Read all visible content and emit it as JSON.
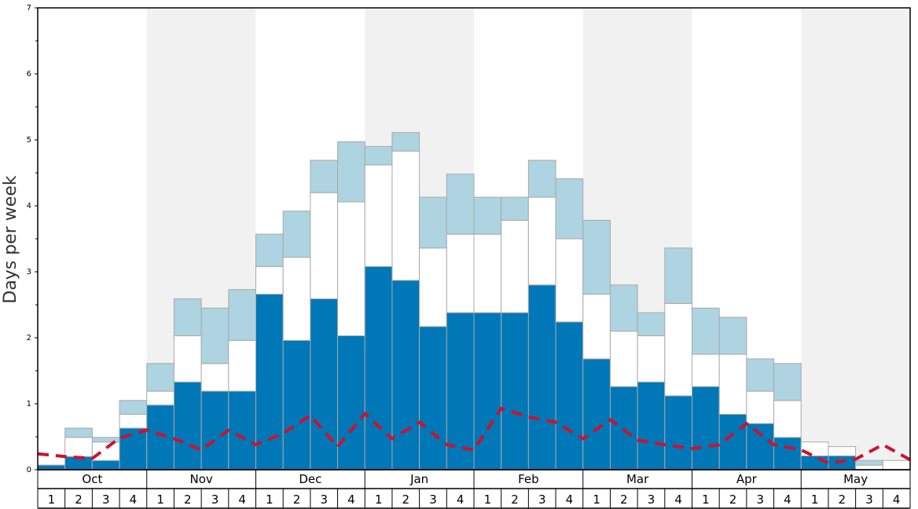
{
  "chart_data": {
    "type": "bar",
    "stacked": true,
    "title": "",
    "xlabel": "",
    "ylabel": "Days per week",
    "ylim": [
      0,
      7
    ],
    "yticks": [
      "0",
      "1",
      "2",
      "3",
      "4",
      "5",
      "6",
      "7"
    ],
    "months": [
      "Oct",
      "Nov",
      "Dec",
      "Jan",
      "Feb",
      "Mar",
      "Apr",
      "May"
    ],
    "week_labels": [
      "1",
      "2",
      "3",
      "4"
    ],
    "colors": {
      "segment1": "#0077b6",
      "segment2": "#ffffff",
      "segment3": "#add4e0",
      "bar_stroke": "#a9a9a9",
      "band": "#f1f1f1",
      "dashed_line": "#cc1230"
    },
    "series": [
      {
        "values": [
          0.07,
          0.2,
          0.14,
          0.63,
          0.98,
          1.33,
          1.19,
          1.19,
          2.66,
          1.96,
          2.59,
          2.03,
          3.08,
          2.87,
          2.17,
          2.38,
          2.38,
          2.38,
          2.8,
          2.24,
          1.68,
          1.26,
          1.33,
          1.12,
          1.26,
          0.84,
          0.7,
          0.49,
          0.21,
          0.21,
          0.0,
          0.0
        ]
      },
      {
        "values": [
          0.0,
          0.29,
          0.28,
          0.21,
          0.21,
          0.7,
          0.42,
          0.77,
          0.42,
          1.26,
          1.61,
          2.03,
          1.54,
          1.96,
          1.19,
          1.19,
          1.19,
          1.4,
          1.33,
          1.26,
          0.98,
          0.84,
          0.7,
          1.4,
          0.49,
          0.91,
          0.49,
          0.56,
          0.21,
          0.14,
          0.07,
          0.14
        ]
      },
      {
        "values": [
          0.0,
          0.14,
          0.07,
          0.21,
          0.42,
          0.56,
          0.84,
          0.77,
          0.49,
          0.7,
          0.49,
          0.91,
          0.28,
          0.28,
          0.77,
          0.91,
          0.56,
          0.35,
          0.56,
          0.91,
          1.12,
          0.7,
          0.35,
          0.84,
          0.7,
          0.56,
          0.49,
          0.56,
          0.0,
          0.0,
          0.07,
          0.0
        ]
      }
    ],
    "line": {
      "style": "dashed",
      "values": [
        0.24,
        0.2,
        0.17,
        0.48,
        0.6,
        0.47,
        0.3,
        0.6,
        0.38,
        0.55,
        0.82,
        0.35,
        0.85,
        0.47,
        0.72,
        0.38,
        0.3,
        0.93,
        0.8,
        0.72,
        0.47,
        0.76,
        0.45,
        0.38,
        0.32,
        0.38,
        0.7,
        0.38,
        0.3,
        0.1,
        0.16,
        0.38,
        0.15
      ]
    }
  }
}
